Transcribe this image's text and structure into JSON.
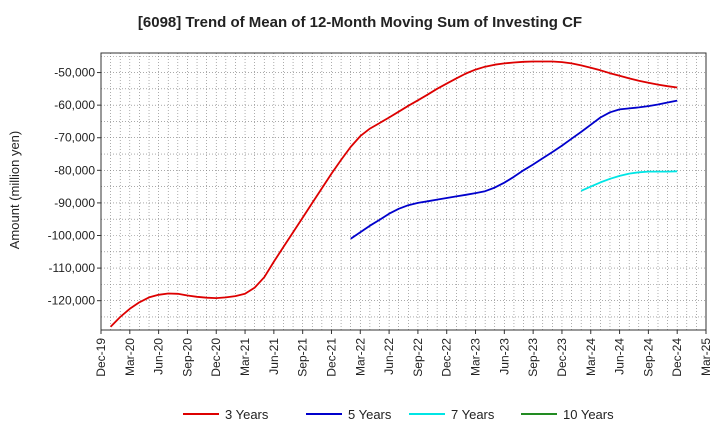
{
  "chart_data": {
    "type": "line",
    "title": "[6098]  Trend of Mean of 12-Month Moving Sum of Investing CF",
    "ylabel": "Amount (million yen)",
    "xlabel": "",
    "x_ticks": [
      "Dec-19",
      "Mar-20",
      "Jun-20",
      "Sep-20",
      "Dec-20",
      "Mar-21",
      "Jun-21",
      "Sep-21",
      "Dec-21",
      "Mar-22",
      "Jun-22",
      "Sep-22",
      "Dec-22",
      "Mar-23",
      "Jun-23",
      "Sep-23",
      "Dec-23",
      "Mar-24",
      "Jun-24",
      "Sep-24",
      "Dec-24",
      "Mar-25"
    ],
    "y_ticks": [
      -120000,
      -110000,
      -100000,
      -90000,
      -80000,
      -70000,
      -60000,
      -50000
    ],
    "y_tick_labels": [
      "-120,000",
      "-110,000",
      "-100,000",
      "-90,000",
      "-80,000",
      "-70,000",
      "-60,000",
      "-50,000"
    ],
    "ylim": [
      -129000,
      -44000
    ],
    "grid": true,
    "legend_position": "bottom",
    "series": [
      {
        "name": "3 Years",
        "color": "#dd0000",
        "points": [
          [
            "2020-01",
            -128000
          ],
          [
            "2020-02",
            -125000
          ],
          [
            "2020-03",
            -122500
          ],
          [
            "2020-04",
            -120500
          ],
          [
            "2020-05",
            -119000
          ],
          [
            "2020-06",
            -118200
          ],
          [
            "2020-07",
            -117800
          ],
          [
            "2020-08",
            -117900
          ],
          [
            "2020-09",
            -118400
          ],
          [
            "2020-10",
            -118800
          ],
          [
            "2020-11",
            -119100
          ],
          [
            "2020-12",
            -119200
          ],
          [
            "2021-01",
            -119000
          ],
          [
            "2021-02",
            -118600
          ],
          [
            "2021-03",
            -117900
          ],
          [
            "2021-04",
            -116000
          ],
          [
            "2021-05",
            -112800
          ],
          [
            "2021-06",
            -108000
          ],
          [
            "2021-07",
            -103500
          ],
          [
            "2021-08",
            -99000
          ],
          [
            "2021-09",
            -94500
          ],
          [
            "2021-10",
            -90000
          ],
          [
            "2021-11",
            -85500
          ],
          [
            "2021-12",
            -81000
          ],
          [
            "2022-01",
            -76800
          ],
          [
            "2022-02",
            -72800
          ],
          [
            "2022-03",
            -69500
          ],
          [
            "2022-04",
            -67200
          ],
          [
            "2022-05",
            -65500
          ],
          [
            "2022-06",
            -63800
          ],
          [
            "2022-07",
            -62000
          ],
          [
            "2022-08",
            -60200
          ],
          [
            "2022-09",
            -58500
          ],
          [
            "2022-10",
            -56800
          ],
          [
            "2022-11",
            -55000
          ],
          [
            "2022-12",
            -53400
          ],
          [
            "2023-01",
            -51800
          ],
          [
            "2023-02",
            -50300
          ],
          [
            "2023-03",
            -49100
          ],
          [
            "2023-04",
            -48200
          ],
          [
            "2023-05",
            -47600
          ],
          [
            "2023-06",
            -47200
          ],
          [
            "2023-07",
            -46900
          ],
          [
            "2023-08",
            -46700
          ],
          [
            "2023-09",
            -46600
          ],
          [
            "2023-10",
            -46600
          ],
          [
            "2023-11",
            -46600
          ],
          [
            "2023-12",
            -46800
          ],
          [
            "2024-01",
            -47200
          ],
          [
            "2024-02",
            -47800
          ],
          [
            "2024-03",
            -48500
          ],
          [
            "2024-04",
            -49300
          ],
          [
            "2024-05",
            -50200
          ],
          [
            "2024-06",
            -51000
          ],
          [
            "2024-07",
            -51800
          ],
          [
            "2024-08",
            -52500
          ],
          [
            "2024-09",
            -53100
          ],
          [
            "2024-10",
            -53700
          ],
          [
            "2024-11",
            -54200
          ],
          [
            "2024-12",
            -54600
          ]
        ]
      },
      {
        "name": "5 Years",
        "color": "#0000cc",
        "points": [
          [
            "2022-02",
            -101000
          ],
          [
            "2022-03",
            -99000
          ],
          [
            "2022-04",
            -97000
          ],
          [
            "2022-05",
            -95200
          ],
          [
            "2022-06",
            -93300
          ],
          [
            "2022-07",
            -91800
          ],
          [
            "2022-08",
            -90700
          ],
          [
            "2022-09",
            -90000
          ],
          [
            "2022-10",
            -89500
          ],
          [
            "2022-11",
            -89000
          ],
          [
            "2022-12",
            -88500
          ],
          [
            "2023-01",
            -88000
          ],
          [
            "2023-02",
            -87500
          ],
          [
            "2023-03",
            -87000
          ],
          [
            "2023-04",
            -86400
          ],
          [
            "2023-05",
            -85300
          ],
          [
            "2023-06",
            -83800
          ],
          [
            "2023-07",
            -82000
          ],
          [
            "2023-08",
            -80000
          ],
          [
            "2023-09",
            -78200
          ],
          [
            "2023-10",
            -76300
          ],
          [
            "2023-11",
            -74400
          ],
          [
            "2023-12",
            -72400
          ],
          [
            "2024-01",
            -70300
          ],
          [
            "2024-02",
            -68200
          ],
          [
            "2024-03",
            -66000
          ],
          [
            "2024-04",
            -63800
          ],
          [
            "2024-05",
            -62200
          ],
          [
            "2024-06",
            -61300
          ],
          [
            "2024-07",
            -61000
          ],
          [
            "2024-08",
            -60700
          ],
          [
            "2024-09",
            -60300
          ],
          [
            "2024-10",
            -59800
          ],
          [
            "2024-11",
            -59200
          ],
          [
            "2024-12",
            -58600
          ]
        ]
      },
      {
        "name": "7 Years",
        "color": "#00e5e5",
        "points": [
          [
            "2024-02",
            -86300
          ],
          [
            "2024-03",
            -85000
          ],
          [
            "2024-04",
            -83700
          ],
          [
            "2024-05",
            -82600
          ],
          [
            "2024-06",
            -81700
          ],
          [
            "2024-07",
            -81000
          ],
          [
            "2024-08",
            -80600
          ],
          [
            "2024-09",
            -80400
          ],
          [
            "2024-10",
            -80400
          ],
          [
            "2024-11",
            -80400
          ],
          [
            "2024-12",
            -80300
          ]
        ]
      },
      {
        "name": "10 Years",
        "color": "#228b22",
        "points": []
      }
    ]
  }
}
